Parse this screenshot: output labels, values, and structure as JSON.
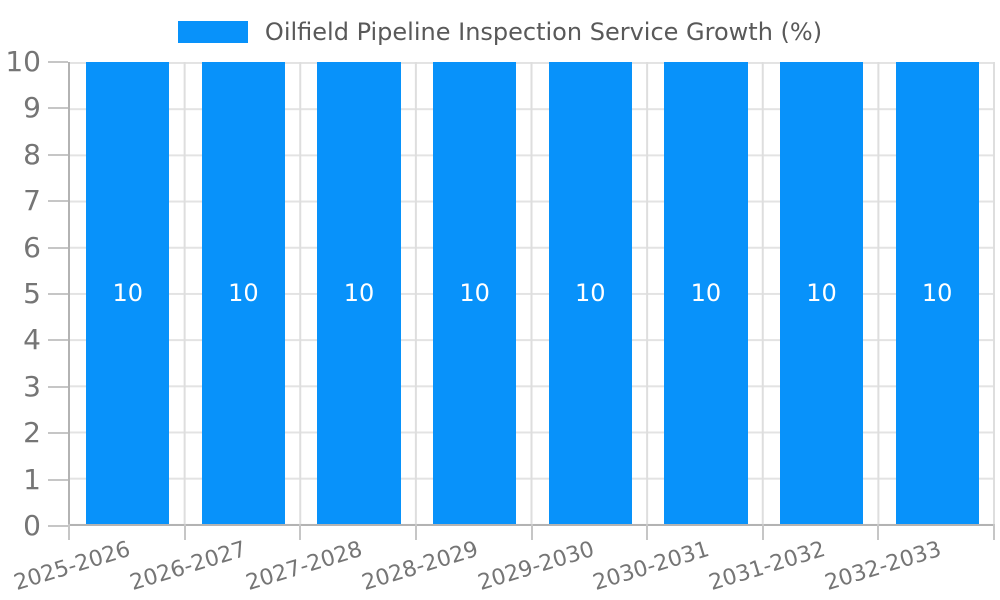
{
  "chart_data": {
    "type": "bar",
    "title": "",
    "categories": [
      "2025-2026",
      "2026-2027",
      "2027-2028",
      "2028-2029",
      "2029-2030",
      "2030-2031",
      "2031-2032",
      "2032-2033"
    ],
    "series": [
      {
        "name": "Oilfield Pipeline Inspection Service Growth (%)",
        "values": [
          10,
          10,
          10,
          10,
          10,
          10,
          10,
          10
        ]
      }
    ],
    "xlabel": "",
    "ylabel": "",
    "ylim": [
      0,
      10
    ],
    "yticks": [
      0,
      1,
      2,
      3,
      4,
      5,
      6,
      7,
      8,
      9,
      10
    ],
    "grid": true,
    "bar_value_labels_visible": true,
    "legend_position": "top-center",
    "colors": {
      "bar_fill": "#0892fa",
      "bar_value_label": "#ffffff",
      "grid_line_horizontal": "#e3e3e3",
      "grid_line_vertical": "#dedede",
      "axis_line": "#b3b3b3",
      "tick_mark": "#c6c6c6",
      "axis_label_text": "#757575",
      "legend_text": "#595959",
      "background": "#ffffff"
    }
  }
}
